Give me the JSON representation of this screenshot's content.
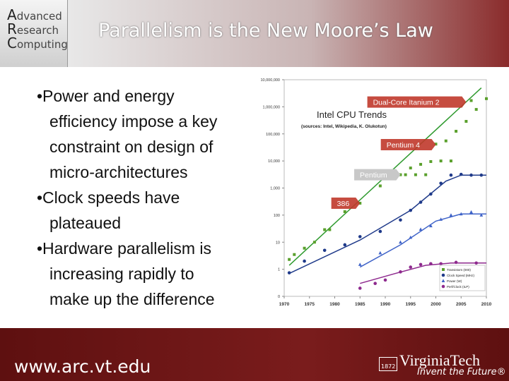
{
  "header": {
    "logo": [
      "Advanced",
      "Research",
      "Computing"
    ],
    "title": "Parallelism is the New Moore’s Law"
  },
  "bullets": [
    {
      "lines": [
        "Power and energy",
        "efficiency impose a key",
        "constraint on design of",
        "micro-architectures"
      ]
    },
    {
      "lines": [
        "Clock speeds have",
        "plateaued"
      ]
    },
    {
      "lines": [
        "Hardware parallelism is",
        "increasing rapidly to",
        "make up the difference"
      ]
    }
  ],
  "chart_data": {
    "type": "scatter",
    "title": "Intel CPU Trends",
    "subtitle": "(sources: Intel, Wikipedia, K. Olukotun)",
    "log_y": true,
    "xlim": [
      1970,
      2010
    ],
    "xticks": [
      1970,
      1975,
      1980,
      1985,
      1990,
      1995,
      2000,
      2005,
      2010
    ],
    "ylim": [
      0.1,
      10000000
    ],
    "yticks": [
      {
        "value": 0.1,
        "label": "0"
      },
      1,
      10,
      100,
      {
        "value": 1000,
        "label": "1,000"
      },
      {
        "value": 10000,
        "label": "10,000"
      },
      {
        "value": 100000,
        "label": "100,000"
      },
      {
        "value": 1000000,
        "label": "1,000,000"
      },
      {
        "value": 10000000,
        "label": "10,000,000"
      }
    ],
    "annotations": [
      {
        "text": "Dual-Core Itanium 2",
        "x": 2006,
        "y": 1500000
      },
      {
        "text": "Pentium 4",
        "x": 2000,
        "y": 40000
      },
      {
        "text": "Pentium",
        "x": 1993,
        "y": 3100
      },
      {
        "text": "386",
        "x": 1985,
        "y": 275
      }
    ],
    "series": [
      {
        "name": "Transistors (000)",
        "color": "#5aa02c",
        "marker": "square",
        "x": [
          1971,
          1972,
          1974,
          1976,
          1978,
          1979,
          1982,
          1985,
          1989,
          1993,
          1994,
          1995,
          1996,
          1997,
          1998,
          1999,
          2000,
          2001,
          2002,
          2003,
          2004,
          2006,
          2007,
          2008,
          2010
        ],
        "values": [
          2.3,
          3.5,
          6,
          10,
          29,
          29,
          134,
          275,
          1200,
          3100,
          3100,
          5500,
          3100,
          7500,
          3100,
          9500,
          42000,
          10000,
          55000,
          10000,
          125000,
          290000,
          1700000,
          800000,
          2000000
        ]
      },
      {
        "name": "Clock Speed (MHz)",
        "color": "#1f3a8a",
        "marker": "circle",
        "x": [
          1971,
          1974,
          1978,
          1982,
          1985,
          1989,
          1993,
          1995,
          1997,
          1999,
          2001,
          2003,
          2005,
          2007,
          2009
        ],
        "values": [
          0.74,
          2,
          5,
          8,
          16,
          25,
          66,
          150,
          300,
          600,
          1500,
          3000,
          3200,
          3000,
          3000
        ]
      },
      {
        "name": "Power (W)",
        "color": "#3f63c8",
        "marker": "triangle",
        "x": [
          1985,
          1989,
          1993,
          1995,
          1997,
          1999,
          2001,
          2003,
          2005,
          2007,
          2009
        ],
        "values": [
          1.5,
          4,
          10,
          15,
          30,
          40,
          70,
          100,
          110,
          130,
          100
        ]
      },
      {
        "name": "Perf/Clock (ILP)",
        "color": "#8e2a8e",
        "marker": "circle",
        "x": [
          1985,
          1988,
          1990,
          1993,
          1995,
          1997,
          1999,
          2001,
          2004,
          2008
        ],
        "values": [
          0.2,
          0.3,
          0.4,
          0.8,
          1.2,
          1.5,
          1.6,
          1.6,
          1.8,
          1.7
        ]
      }
    ],
    "trends": [
      {
        "color": "#2e9a2e",
        "x": [
          1971,
          2009
        ],
        "values": [
          1.4,
          5000000
        ]
      },
      {
        "color": "#1f3a8a",
        "x": [
          1971,
          1985,
          1995,
          2002,
          2005,
          2010
        ],
        "values": [
          0.7,
          12,
          150,
          1800,
          3000,
          3000
        ]
      },
      {
        "color": "#3f63c8",
        "x": [
          1985,
          1993,
          2000,
          2005,
          2010
        ],
        "values": [
          1.2,
          8,
          60,
          110,
          110
        ]
      },
      {
        "color": "#8e2a8e",
        "x": [
          1985,
          1992,
          1998,
          2003,
          2010
        ],
        "values": [
          0.3,
          0.7,
          1.4,
          1.7,
          1.7
        ]
      }
    ]
  },
  "footer": {
    "url": "www.arc.vt.edu",
    "logo_year": "1872",
    "logo_name": "VirginiaTech",
    "tagline": "Invent the Future®"
  }
}
